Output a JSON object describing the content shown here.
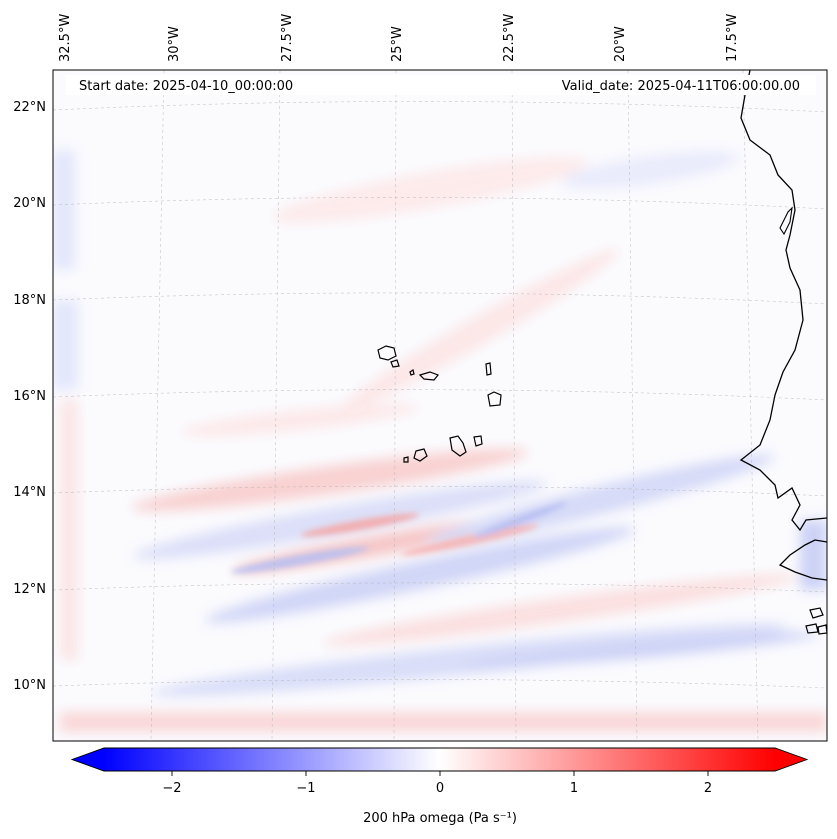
{
  "map": {
    "header_left": "Start date: 2025-04-10_00:00:00",
    "header_right": "Valid_date: 2025-04-11T06:00:00.00",
    "lon_labels": [
      "32.5°W",
      "30°W",
      "27.5°W",
      "25°W",
      "22.5°W",
      "20°W",
      "17.5°W"
    ],
    "lat_labels": [
      "22°N",
      "20°N",
      "18°N",
      "16°N",
      "14°N",
      "12°N",
      "10°N"
    ],
    "lon_values": [
      -32.5,
      -30,
      -27.5,
      -25,
      -22.5,
      -20,
      -17.5
    ],
    "lat_values": [
      22,
      20,
      18,
      16,
      14,
      12,
      10
    ],
    "extent": {
      "lon_min": -33.0,
      "lon_max": -15.6,
      "lat_min": 8.9,
      "lat_max": 22.8
    }
  },
  "colorbar": {
    "label": "200 hPa omega (Pa s⁻¹)",
    "ticks": [
      "−2",
      "−1",
      "0",
      "1",
      "2"
    ],
    "tick_values": [
      -2,
      -1,
      0,
      1,
      2
    ],
    "range": [
      -2.6,
      2.6
    ],
    "colors": {
      "min": "#0000ff",
      "mid": "#ffffff",
      "max": "#ff0000"
    }
  },
  "colors": {
    "coast": "#000000",
    "grid": "#b0b0b0"
  }
}
